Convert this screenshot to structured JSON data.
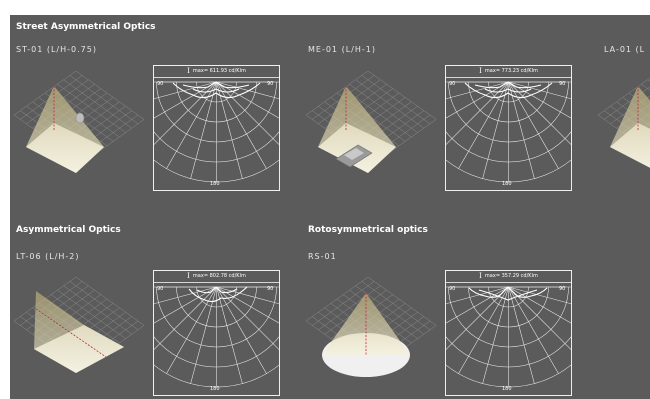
{
  "sections": [
    {
      "title": "Street Asymmetrical Optics"
    },
    {
      "title": "Asymmetrical Optics"
    },
    {
      "title": "Rotosymmetrical optics"
    }
  ],
  "items": [
    {
      "label": "ST-01 (L/H-0.75)",
      "type": "street",
      "intensity_text": "max= 611.93 cd/Klm",
      "intensity_max": 611.93,
      "angles": {
        "left": "90",
        "right": "90",
        "bottom": "180"
      }
    },
    {
      "label": "ME-01 (L/H-1)",
      "type": "street-car",
      "intensity_text": "max= 773.23 cd/Klm",
      "intensity_max": 773.23,
      "angles": {
        "left": "90",
        "right": "90",
        "bottom": "180"
      }
    },
    {
      "label": "LA-01 (L",
      "type": "street-partial"
    },
    {
      "label": "LT-06 (L/H-2)",
      "type": "asymmetric",
      "intensity_text": "max= 802.78 cd/Klm",
      "intensity_max": 802.78,
      "angles": {
        "left": "90",
        "right": "90",
        "bottom": "180"
      }
    },
    {
      "label": "RS-01",
      "type": "rotosymmetric",
      "intensity_text": "max= 357.29 cd/Klm",
      "intensity_max": 357.29,
      "angles": {
        "left": "90",
        "right": "90",
        "bottom": "180"
      }
    }
  ],
  "intensity_symbol": "I",
  "colors": {
    "panel": "#5b5b5b",
    "grid": "#8a8a8a",
    "floor": "#f0f0f0",
    "beam": "#d8cf98",
    "axis": "#d02040",
    "curve": "#ffffff"
  }
}
